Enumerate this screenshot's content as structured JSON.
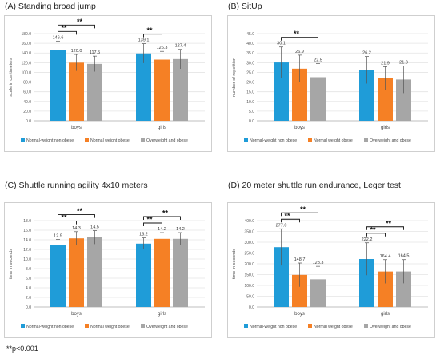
{
  "footnote": "**p<0.001",
  "colors": {
    "series": [
      "#1f9cd8",
      "#f58025",
      "#a6a6a6"
    ]
  },
  "legend_labels": [
    "Normal-weight non obese",
    "Normal weight obese",
    "Overweight and obese"
  ],
  "chart_data": [
    {
      "panel": "A",
      "type": "bar",
      "title": "(A) Standing broad jump",
      "ylabel": "scale in centimeters",
      "xlabel": "",
      "categories": [
        "boys",
        "girls"
      ],
      "ylim": [
        0,
        180
      ],
      "yticks": [
        "0.0",
        "20.0",
        "40.0",
        "60.0",
        "80.0",
        "100.0",
        "120.0",
        "140.0",
        "160.0",
        "180.0"
      ],
      "grid": true,
      "legend": "bottom",
      "series": [
        {
          "name": "Normal-weight non obese",
          "values": [
            146.6,
            139.1
          ],
          "labels": [
            "146.6",
            "139.1"
          ],
          "err": [
            18,
            20
          ]
        },
        {
          "name": "Normal weight obese",
          "values": [
            120.0,
            126.3
          ],
          "labels": [
            "120.0",
            "126.3"
          ],
          "err": [
            17,
            17
          ]
        },
        {
          "name": "Overweight and obese",
          "values": [
            117.5,
            127.4
          ],
          "labels": [
            "117.5",
            "127.4"
          ],
          "err": [
            16,
            20
          ]
        }
      ],
      "significance": [
        {
          "category": 0,
          "from": 0,
          "to": 1,
          "label": "**",
          "level": 0
        },
        {
          "category": 0,
          "from": 0,
          "to": 2,
          "label": "**",
          "level": 1
        },
        {
          "category": 1,
          "from": 0,
          "to": 1,
          "label": "**",
          "level": 0
        }
      ]
    },
    {
      "panel": "B",
      "type": "bar",
      "title": "(B) SitUp",
      "ylabel": "number of repetition",
      "xlabel": "",
      "categories": [
        "boys",
        "girls"
      ],
      "ylim": [
        0,
        45
      ],
      "yticks": [
        "0.0",
        "5.0",
        "10.0",
        "15.0",
        "20.0",
        "25.0",
        "30.0",
        "35.0",
        "40.0",
        "45.0"
      ],
      "grid": true,
      "legend": "bottom",
      "series": [
        {
          "name": "Normal-weight non obese",
          "values": [
            30.1,
            26.2
          ],
          "labels": [
            "30.1",
            "26.2"
          ],
          "err": [
            8,
            7
          ]
        },
        {
          "name": "Normal weight obese",
          "values": [
            26.9,
            21.9
          ],
          "labels": [
            "26.9",
            "21.9"
          ],
          "err": [
            7,
            6
          ]
        },
        {
          "name": "Overweight and obese",
          "values": [
            22.5,
            21.3
          ],
          "labels": [
            "22.5",
            "21.3"
          ],
          "err": [
            7,
            7
          ]
        }
      ],
      "significance": [
        {
          "category": 0,
          "from": 0,
          "to": 2,
          "label": "**",
          "level": 0
        }
      ]
    },
    {
      "panel": "C",
      "type": "bar",
      "title": "(C) Shuttle running agility 4x10 meters",
      "ylabel": "time in seconds",
      "xlabel": "",
      "categories": [
        "boys",
        "girls"
      ],
      "ylim": [
        0,
        18
      ],
      "yticks": [
        "0.0",
        "2.0",
        "4.0",
        "6.0",
        "8.0",
        "10.0",
        "12.0",
        "14.0",
        "16.0",
        "18.0"
      ],
      "grid": true,
      "legend": "bottom",
      "series": [
        {
          "name": "Normal-weight non obese",
          "values": [
            12.9,
            13.2
          ],
          "labels": [
            "12.9",
            "13.2"
          ],
          "err": [
            1.2,
            1.2
          ]
        },
        {
          "name": "Normal weight obese",
          "values": [
            14.3,
            14.2
          ],
          "labels": [
            "14.3",
            "14.2"
          ],
          "err": [
            1.4,
            1.3
          ]
        },
        {
          "name": "Overweight and obese",
          "values": [
            14.5,
            14.2
          ],
          "labels": [
            "14.5",
            "14.2"
          ],
          "err": [
            1.4,
            1.3
          ]
        }
      ],
      "significance": [
        {
          "category": 0,
          "from": 0,
          "to": 1,
          "label": "**",
          "level": 0
        },
        {
          "category": 0,
          "from": 0,
          "to": 2,
          "label": "**",
          "level": 1
        },
        {
          "category": 1,
          "from": 0,
          "to": 1,
          "label": "**",
          "level": 0
        },
        {
          "category": 1,
          "from": 0,
          "to": 2,
          "label": "**",
          "level": 1
        }
      ]
    },
    {
      "panel": "D",
      "type": "bar",
      "title": "(D) 20 meter shuttle run endurance, Leger test",
      "ylabel": "time in seconds",
      "xlabel": "",
      "categories": [
        "boys",
        "girls"
      ],
      "ylim": [
        0,
        400
      ],
      "yticks": [
        "0.0",
        "50.0",
        "100.0",
        "150.0",
        "200.0",
        "250.0",
        "300.0",
        "350.0",
        "400.0"
      ],
      "grid": true,
      "legend": "bottom",
      "series": [
        {
          "name": "Normal-weight non obese",
          "values": [
            277.0,
            222.2
          ],
          "labels": [
            "277.0",
            "222.2"
          ],
          "err": [
            85,
            75
          ]
        },
        {
          "name": "Normal weight obese",
          "values": [
            148.7,
            164.4
          ],
          "labels": [
            "148.7",
            "164.4"
          ],
          "err": [
            55,
            55
          ]
        },
        {
          "name": "Overweight and obese",
          "values": [
            128.3,
            164.5
          ],
          "labels": [
            "128.3",
            "164.5"
          ],
          "err": [
            60,
            55
          ]
        }
      ],
      "significance": [
        {
          "category": 0,
          "from": 0,
          "to": 1,
          "label": "**",
          "level": 0
        },
        {
          "category": 0,
          "from": 0,
          "to": 2,
          "label": "**",
          "level": 1
        },
        {
          "category": 1,
          "from": 0,
          "to": 1,
          "label": "**",
          "level": 0
        },
        {
          "category": 1,
          "from": 0,
          "to": 2,
          "label": "**",
          "level": 1
        }
      ]
    }
  ]
}
